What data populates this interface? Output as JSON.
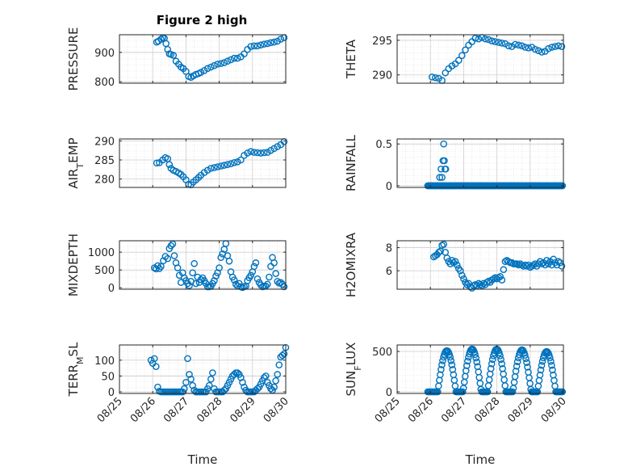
{
  "figure": {
    "title": "Figure 2 high",
    "colors": {
      "marker": "#0072BD",
      "axis": "#262626",
      "grid": "#cfcfcf",
      "background": "#ffffff"
    }
  },
  "chart_data": [
    {
      "type": "scatter",
      "ylabel": "PRESSURE",
      "yticks": [
        "800",
        "900"
      ],
      "ylim": [
        795,
        960
      ],
      "xlim": [
        "08/26 12:00",
        "08/30 00:00"
      ],
      "x_days": [
        26.12,
        26.17,
        26.25,
        26.3,
        26.35,
        26.4,
        26.45,
        26.5,
        26.55,
        26.62,
        26.7,
        26.78,
        26.85,
        26.92,
        27.0,
        27.08,
        27.15,
        27.22,
        27.3,
        27.38,
        27.45,
        27.55,
        27.65,
        27.75,
        27.85,
        27.95,
        28.05,
        28.15,
        28.25,
        28.35,
        28.45,
        28.55,
        28.65,
        28.75,
        28.85,
        28.95,
        29.05,
        29.15,
        29.25,
        29.35,
        29.45,
        29.55,
        29.65,
        29.75,
        29.85,
        29.95
      ],
      "values": [
        935,
        938,
        945,
        950,
        948,
        930,
        910,
        895,
        893,
        890,
        870,
        860,
        850,
        845,
        835,
        818,
        815,
        820,
        825,
        828,
        832,
        838,
        845,
        850,
        855,
        860,
        862,
        865,
        870,
        875,
        880,
        880,
        885,
        895,
        910,
        920,
        922,
        922,
        925,
        928,
        930,
        933,
        935,
        938,
        945,
        950
      ]
    },
    {
      "type": "scatter",
      "ylabel": "THETA",
      "yticks": [
        "290",
        "295"
      ],
      "ylim": [
        288.8,
        295.8
      ],
      "xlim": [
        "08/26 12:00",
        "08/30 00:00"
      ],
      "x_days": [
        26.05,
        26.15,
        26.25,
        26.35,
        26.45,
        26.55,
        26.65,
        26.75,
        26.85,
        26.95,
        27.05,
        27.15,
        27.25,
        27.35,
        27.45,
        27.55,
        27.65,
        27.75,
        27.85,
        27.95,
        28.05,
        28.15,
        28.25,
        28.35,
        28.45,
        28.55,
        28.65,
        28.75,
        28.85,
        28.95,
        29.05,
        29.15,
        29.25,
        29.35,
        29.45,
        29.55,
        29.65,
        29.75,
        29.85,
        29.95
      ],
      "values": [
        289.7,
        289.6,
        289.5,
        289.2,
        290.3,
        290.9,
        291.3,
        291.6,
        292.1,
        292.8,
        293.6,
        294.3,
        294.8,
        295.3,
        295.2,
        295.4,
        295.2,
        295.1,
        294.9,
        294.8,
        294.7,
        294.6,
        294.5,
        294.2,
        294.1,
        294.4,
        294.3,
        294.2,
        294.0,
        293.9,
        294.0,
        293.7,
        293.5,
        293.3,
        293.4,
        293.8,
        294.0,
        294.1,
        294.2,
        294.1
      ]
    },
    {
      "type": "scatter",
      "ylabel": "AIR_TEMP",
      "yticks": [
        "280",
        "285",
        "290"
      ],
      "ylim": [
        277.8,
        290.5
      ],
      "xlim": [
        "08/26 12:00",
        "08/30 00:00"
      ],
      "x_days": [
        26.12,
        26.2,
        26.3,
        26.38,
        26.45,
        26.5,
        26.55,
        26.62,
        26.7,
        26.78,
        26.85,
        26.92,
        27.0,
        27.08,
        27.15,
        27.22,
        27.3,
        27.38,
        27.45,
        27.55,
        27.65,
        27.75,
        27.85,
        27.95,
        28.05,
        28.15,
        28.25,
        28.35,
        28.45,
        28.55,
        28.65,
        28.75,
        28.85,
        28.95,
        29.05,
        29.15,
        29.25,
        29.35,
        29.45,
        29.55,
        29.65,
        29.75,
        29.85,
        29.95
      ],
      "values": [
        284.2,
        284.3,
        285.0,
        285.6,
        285.3,
        283.8,
        282.8,
        282.3,
        282.0,
        281.6,
        281.2,
        280.6,
        279.8,
        278.6,
        278.5,
        279.2,
        279.8,
        280.4,
        281.0,
        281.7,
        282.3,
        282.8,
        283.0,
        283.2,
        283.4,
        283.6,
        283.8,
        284.0,
        284.3,
        284.5,
        285.0,
        286.2,
        286.8,
        287.2,
        287.0,
        286.9,
        286.8,
        286.9,
        287.0,
        287.5,
        288.0,
        288.5,
        289.0,
        289.8
      ]
    },
    {
      "type": "scatter",
      "ylabel": "RAINFALL",
      "yticks": [
        "0",
        "0.5"
      ],
      "ylim": [
        -0.02,
        0.56
      ],
      "xlim": [
        "08/25 23:00",
        "08/30 00:00"
      ],
      "zero_run_start": 25.92,
      "zero_run_end": 29.98,
      "x_days": [
        26.28,
        26.32,
        26.35,
        26.38,
        26.4,
        26.42,
        26.44,
        26.46
      ],
      "values": [
        0.1,
        0.2,
        0.1,
        0.3,
        0.5,
        0.3,
        0.2,
        0.2
      ]
    },
    {
      "type": "scatter",
      "ylabel": "MIXDEPTH",
      "yticks": [
        "0",
        "500",
        "1000"
      ],
      "ylim": [
        -40,
        1320
      ],
      "xlim": [
        "08/26 12:00",
        "08/30 00:00"
      ],
      "x_days": [
        26.05,
        26.1,
        26.15,
        26.2,
        26.25,
        26.32,
        26.38,
        26.45,
        26.5,
        26.55,
        26.6,
        26.65,
        26.7,
        26.75,
        26.8,
        26.85,
        26.9,
        26.95,
        27.0,
        27.05,
        27.1,
        27.15,
        27.2,
        27.25,
        27.3,
        27.35,
        27.4,
        27.45,
        27.5,
        27.55,
        27.6,
        27.65,
        27.7,
        27.75,
        27.8,
        27.85,
        27.9,
        27.95,
        28.0,
        28.05,
        28.1,
        28.15,
        28.2,
        28.25,
        28.3,
        28.35,
        28.4,
        28.45,
        28.5,
        28.55,
        28.6,
        28.65,
        28.7,
        28.75,
        28.8,
        28.85,
        28.9,
        28.95,
        29.0,
        29.05,
        29.1,
        29.15,
        29.2,
        29.25,
        29.3,
        29.35,
        29.4,
        29.45,
        29.5,
        29.55,
        29.6,
        29.65,
        29.7,
        29.75,
        29.8,
        29.85,
        29.9,
        29.95
      ],
      "values": [
        560,
        530,
        620,
        540,
        600,
        760,
        880,
        820,
        1100,
        1180,
        1230,
        900,
        700,
        560,
        350,
        150,
        420,
        280,
        200,
        120,
        60,
        180,
        420,
        680,
        120,
        300,
        150,
        230,
        280,
        200,
        120,
        30,
        30,
        40,
        120,
        200,
        330,
        420,
        560,
        850,
        950,
        1080,
        1240,
        900,
        750,
        450,
        300,
        220,
        100,
        50,
        120,
        30,
        10,
        30,
        50,
        200,
        280,
        350,
        450,
        600,
        700,
        250,
        150,
        80,
        30,
        40,
        50,
        100,
        300,
        600,
        850,
        700,
        400,
        180,
        130,
        150,
        100,
        30
      ]
    },
    {
      "type": "scatter",
      "ylabel": "H2OMIXRA",
      "yticks": [
        "6",
        "8"
      ],
      "ylim": [
        4.4,
        8.6
      ],
      "xlim": [
        "08/26 12:00",
        "08/30 00:00"
      ],
      "x_days": [
        26.1,
        26.15,
        26.2,
        26.25,
        26.3,
        26.35,
        26.4,
        26.45,
        26.5,
        26.55,
        26.6,
        26.65,
        26.7,
        26.75,
        26.8,
        26.85,
        26.9,
        26.95,
        27.0,
        27.05,
        27.1,
        27.15,
        27.2,
        27.25,
        27.3,
        27.35,
        27.4,
        27.45,
        27.5,
        27.55,
        27.6,
        27.65,
        27.7,
        27.75,
        27.8,
        27.85,
        27.9,
        27.95,
        28.0,
        28.05,
        28.1,
        28.15,
        28.2,
        28.25,
        28.3,
        28.35,
        28.4,
        28.45,
        28.5,
        28.55,
        28.6,
        28.65,
        28.7,
        28.75,
        28.8,
        28.85,
        28.9,
        28.95,
        29.0,
        29.05,
        29.1,
        29.15,
        29.2,
        29.25,
        29.3,
        29.35,
        29.4,
        29.45,
        29.5,
        29.55,
        29.6,
        29.65,
        29.7,
        29.75,
        29.8,
        29.85,
        29.9,
        29.95
      ],
      "values": [
        7.2,
        7.3,
        7.4,
        7.6,
        7.7,
        8.2,
        8.3,
        7.6,
        7.1,
        6.8,
        6.6,
        6.9,
        6.7,
        6.8,
        6.5,
        6.2,
        6.0,
        5.6,
        5.3,
        5.0,
        4.8,
        4.9,
        4.6,
        4.5,
        4.7,
        4.8,
        4.7,
        4.9,
        4.8,
        4.7,
        4.9,
        4.8,
        5.0,
        5.1,
        5.0,
        5.2,
        5.3,
        5.4,
        5.3,
        5.4,
        5.5,
        5.2,
        6.1,
        6.8,
        6.9,
        6.8,
        6.7,
        6.7,
        6.6,
        6.6,
        6.6,
        6.5,
        6.6,
        6.5,
        6.4,
        6.5,
        6.4,
        6.5,
        6.3,
        6.4,
        6.5,
        6.6,
        6.4,
        6.6,
        6.8,
        6.6,
        6.7,
        6.5,
        6.9,
        6.6,
        6.8,
        6.5,
        7.0,
        6.7,
        6.5,
        6.8,
        6.7,
        6.4
      ]
    },
    {
      "type": "scatter",
      "ylabel": "TERR_MSL",
      "yticks": [
        "0",
        "50",
        "100"
      ],
      "ylim": [
        -5,
        148
      ],
      "xlim": [
        "08/25 00:00",
        "08/30 00:00"
      ],
      "x_labels": [
        "08/25",
        "08/26",
        "08/27",
        "08/28",
        "08/29",
        "08/30"
      ],
      "x_days": [
        25.95,
        26.0,
        26.05,
        26.1,
        26.15,
        26.2,
        26.25,
        26.3,
        26.35,
        26.4,
        26.45,
        26.5,
        26.55,
        26.6,
        26.65,
        26.7,
        26.75,
        26.8,
        26.85,
        26.9,
        26.95,
        27.0,
        27.05,
        27.1,
        27.15,
        27.2,
        27.25,
        27.3,
        27.35,
        27.4,
        27.45,
        27.5,
        27.55,
        27.6,
        27.65,
        27.7,
        27.75,
        27.8,
        27.85,
        27.9,
        27.95,
        28.0,
        28.05,
        28.1,
        28.15,
        28.2,
        28.25,
        28.3,
        28.35,
        28.4,
        28.45,
        28.5,
        28.55,
        28.6,
        28.65,
        28.7,
        28.75,
        28.8,
        28.85,
        28.9,
        28.95,
        29.0,
        29.05,
        29.1,
        29.15,
        29.2,
        29.25,
        29.3,
        29.35,
        29.4,
        29.45,
        29.5,
        29.55,
        29.6,
        29.65,
        29.7,
        29.75,
        29.8,
        29.85,
        29.9,
        29.95,
        30.0
      ],
      "values": [
        100,
        90,
        105,
        80,
        15,
        2,
        0,
        0,
        0,
        0,
        0,
        0,
        0,
        0,
        0,
        0,
        0,
        0,
        0,
        0,
        10,
        30,
        105,
        55,
        40,
        20,
        5,
        0,
        0,
        0,
        0,
        0,
        0,
        0,
        10,
        20,
        40,
        60,
        10,
        0,
        0,
        0,
        0,
        0,
        5,
        10,
        20,
        30,
        40,
        50,
        55,
        60,
        60,
        55,
        45,
        30,
        15,
        5,
        0,
        0,
        0,
        0,
        0,
        5,
        10,
        15,
        25,
        35,
        45,
        50,
        30,
        20,
        10,
        5,
        15,
        35,
        55,
        85,
        110,
        115,
        120,
        140
      ]
    },
    {
      "type": "scatter",
      "ylabel": "SUN_FLUX",
      "yticks": [
        "0",
        "500"
      ],
      "ylim": [
        -20,
        580
      ],
      "xlim": [
        "08/25 00:00",
        "08/30 00:00"
      ],
      "x_labels": [
        "08/25",
        "08/26",
        "08/27",
        "08/28",
        "08/29",
        "08/30"
      ],
      "diurnal": {
        "day_starts": [
          26.22,
          26.98,
          27.72,
          28.48,
          29.22
        ],
        "day_length": 0.55,
        "peaks": [
          510,
          530,
          530,
          520,
          500
        ],
        "night_value": 0,
        "x_start": 25.92,
        "x_end": 29.98
      }
    }
  ],
  "xlabel": "Time"
}
